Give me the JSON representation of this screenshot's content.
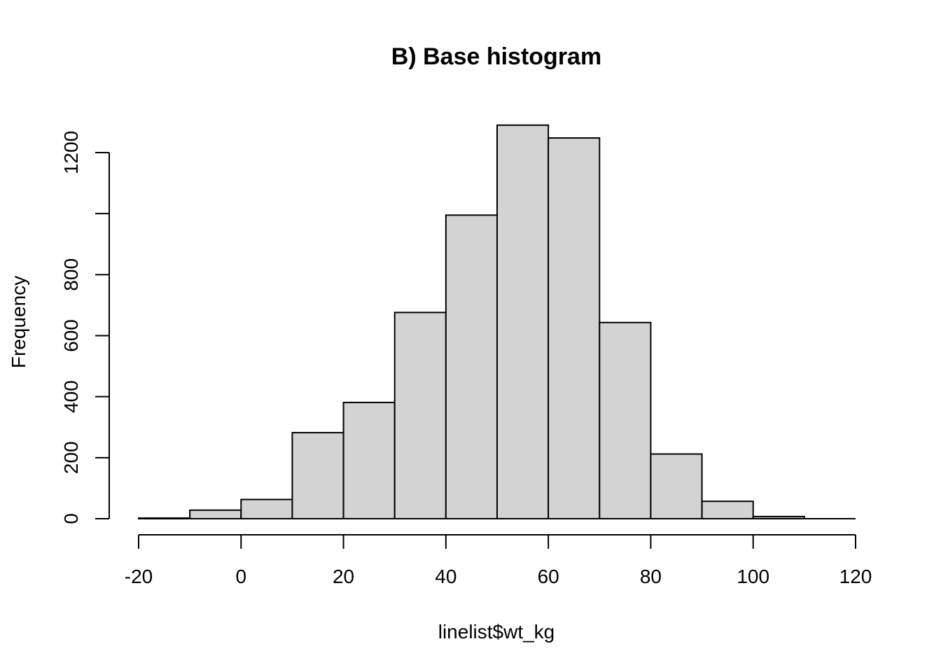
{
  "chart_data": {
    "type": "bar",
    "subtype": "histogram",
    "title": "B) Base histogram",
    "xlabel": "linelist$wt_kg",
    "ylabel": "Frequency",
    "bin_edges": [
      -20,
      -10,
      0,
      10,
      20,
      30,
      40,
      50,
      60,
      70,
      80,
      90,
      100,
      110
    ],
    "values": [
      2,
      28,
      63,
      282,
      381,
      676,
      995,
      1290,
      1248,
      643,
      212,
      57,
      7
    ],
    "xlim": [
      -20,
      120
    ],
    "ylim": [
      0,
      1290
    ],
    "x_ticks": [
      -20,
      0,
      20,
      40,
      60,
      80,
      100,
      120
    ],
    "y_ticks": [
      0,
      200,
      400,
      600,
      800,
      1000,
      1200
    ],
    "y_tick_labels": [
      "0",
      "200",
      "400",
      "600",
      "800",
      "",
      "1200"
    ],
    "x_tick_labels": [
      "-20",
      "0",
      "20",
      "40",
      "60",
      "80",
      "100",
      "120"
    ],
    "bar_color": "#d3d3d3",
    "border_color": "#000000",
    "grid": false,
    "legend": "none"
  }
}
